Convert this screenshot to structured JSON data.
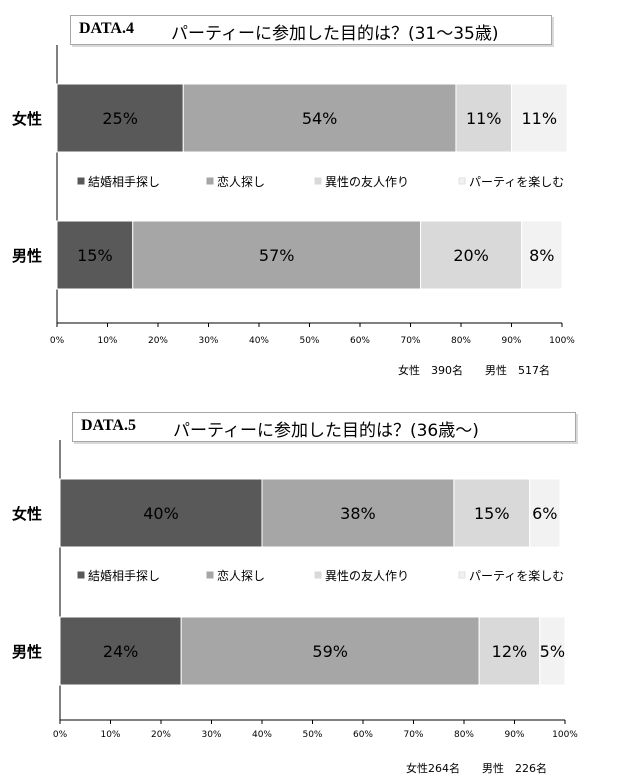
{
  "chart_data": [
    {
      "type": "bar",
      "orientation": "horizontal",
      "stacked": true,
      "percent": true,
      "title_code": "DATA.4",
      "title": "パーティーに参加した目的は？(31～35歳)",
      "categories": [
        "女性",
        "男性"
      ],
      "series": [
        {
          "name": "結婚相手探し",
          "values": [
            25,
            15
          ],
          "labels": [
            "25%",
            "15%"
          ],
          "color": "#595959"
        },
        {
          "name": "恋人探し",
          "values": [
            54,
            57
          ],
          "labels": [
            "54%",
            "57%"
          ],
          "color": "#a6a6a6"
        },
        {
          "name": "異性の友人作り",
          "values": [
            11,
            20
          ],
          "labels": [
            "11%",
            "20%"
          ],
          "color": "#d9d9d9"
        },
        {
          "name": "パーティを楽しむ",
          "values": [
            11,
            8
          ],
          "labels": [
            "11%",
            "8%"
          ],
          "color": "#f2f2f2"
        }
      ],
      "xlim": [
        0,
        100
      ],
      "xticks": [
        "0%",
        "10%",
        "20%",
        "30%",
        "40%",
        "50%",
        "60%",
        "70%",
        "80%",
        "90%",
        "100%"
      ],
      "legend_position": "between-bars",
      "grid": false,
      "sample_note": "女性　390名　　男性　517名"
    },
    {
      "type": "bar",
      "orientation": "horizontal",
      "stacked": true,
      "percent": true,
      "title_code": "DATA.5",
      "title": "パーティーに参加した目的は？(36歳～)",
      "categories": [
        "女性",
        "男性"
      ],
      "series": [
        {
          "name": "結婚相手探し",
          "values": [
            40,
            24
          ],
          "labels": [
            "40%",
            "24%"
          ],
          "color": "#595959"
        },
        {
          "name": "恋人探し",
          "values": [
            38,
            59
          ],
          "labels": [
            "38%",
            "59%"
          ],
          "color": "#a6a6a6"
        },
        {
          "name": "異性の友人作り",
          "values": [
            15,
            12
          ],
          "labels": [
            "15%",
            "12%"
          ],
          "color": "#d9d9d9"
        },
        {
          "name": "パーティを楽しむ",
          "values": [
            6,
            5
          ],
          "labels": [
            "6%",
            "5%"
          ],
          "color": "#f2f2f2"
        }
      ],
      "xlim": [
        0,
        100
      ],
      "xticks": [
        "0%",
        "10%",
        "20%",
        "30%",
        "40%",
        "50%",
        "60%",
        "70%",
        "80%",
        "90%",
        "100%"
      ],
      "legend_position": "between-bars",
      "grid": false,
      "sample_note": "女性264名　　男性　226名"
    }
  ]
}
